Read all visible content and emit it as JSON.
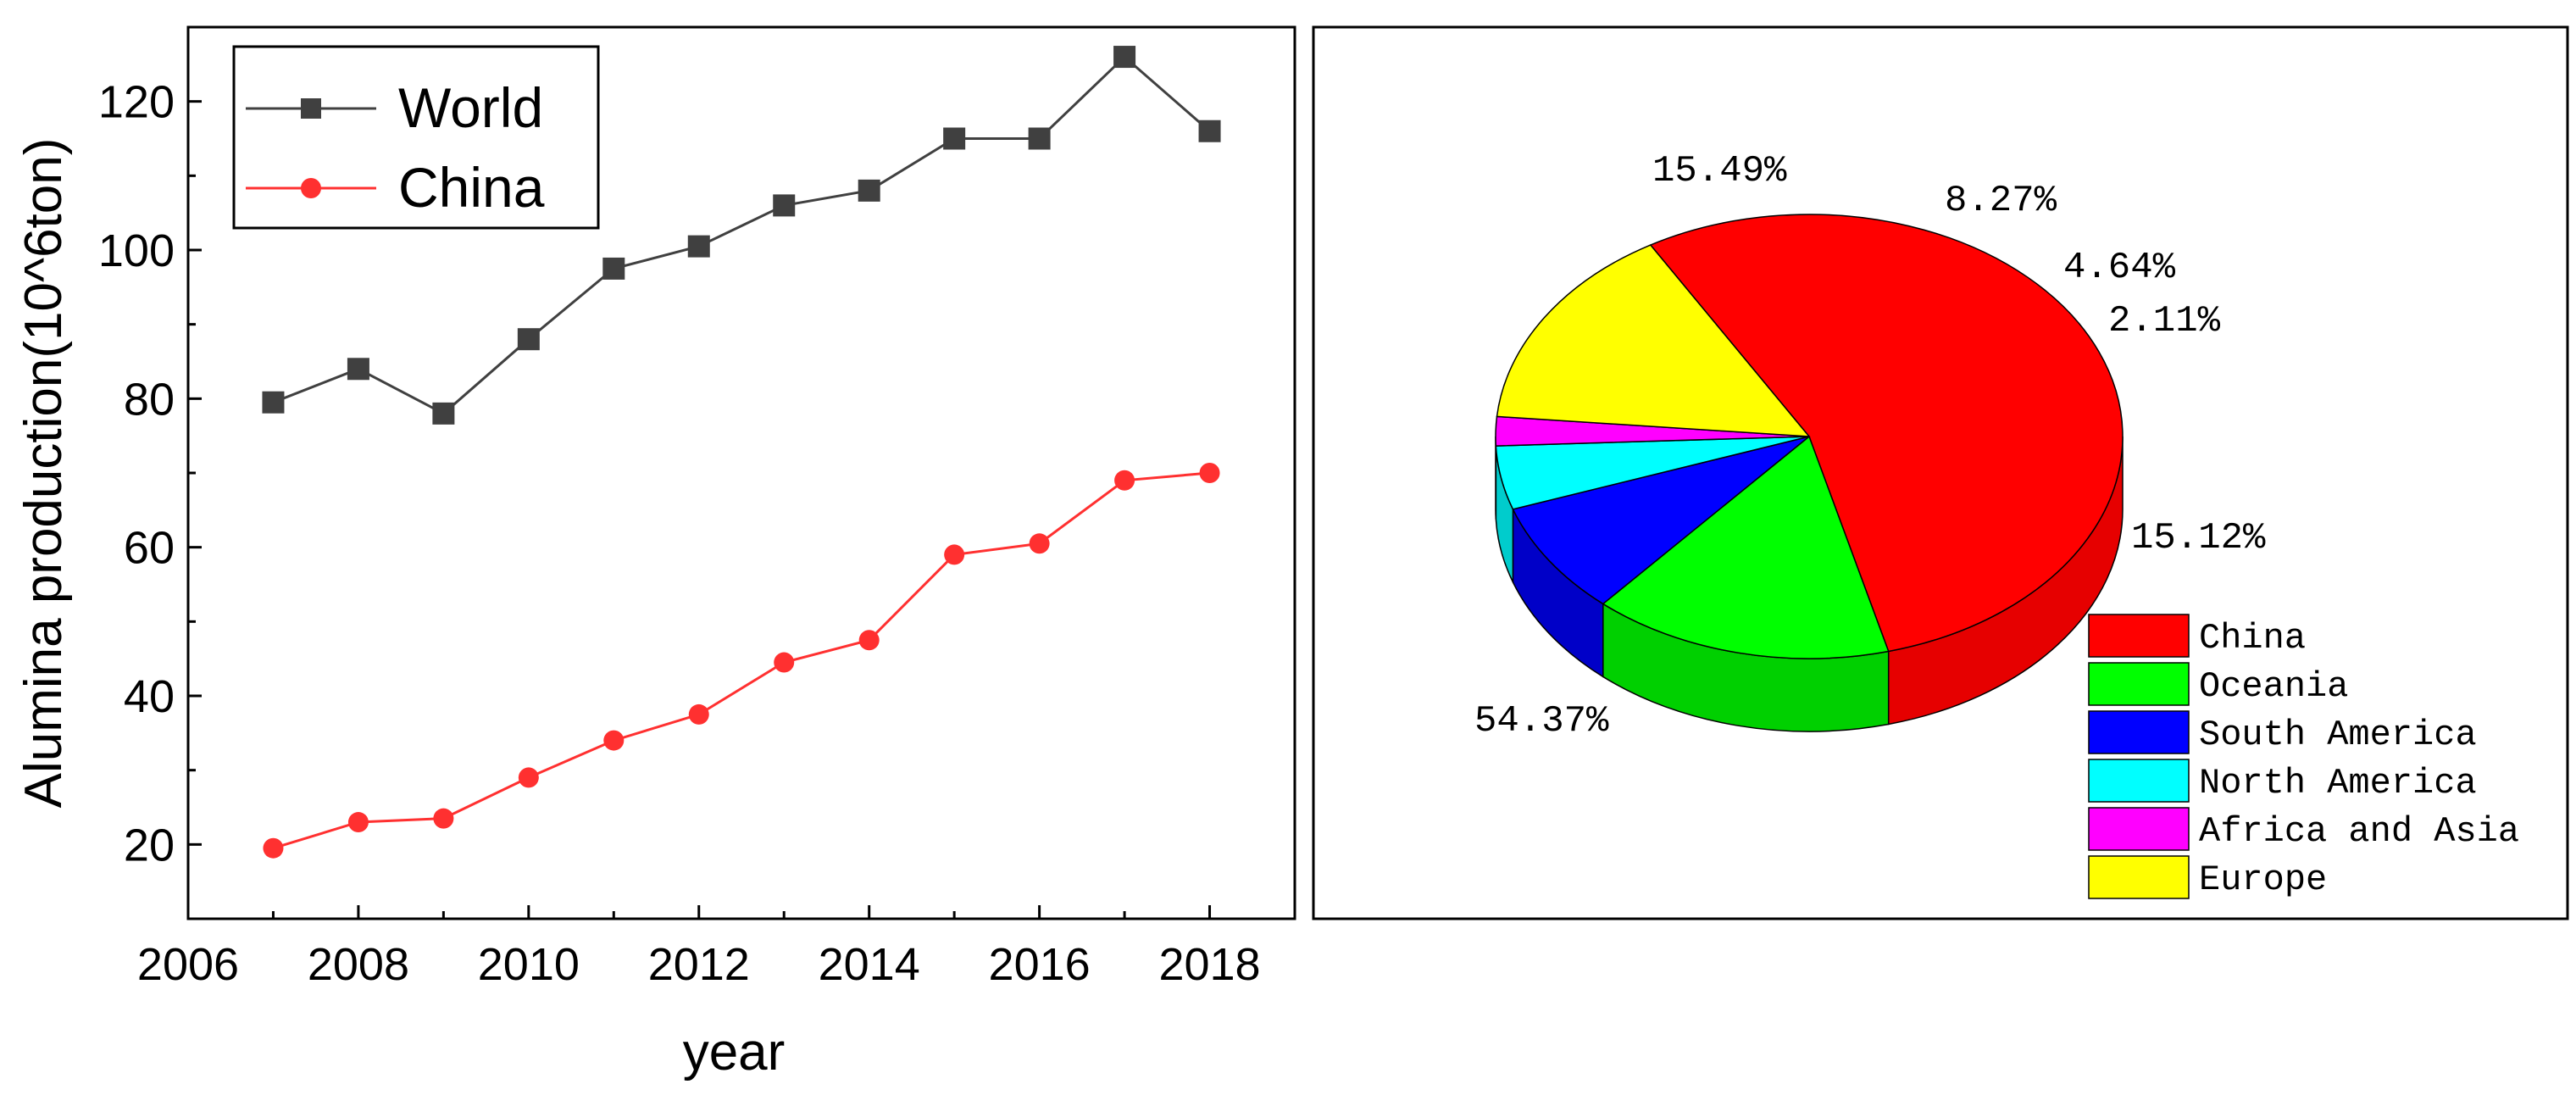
{
  "chart_data": [
    {
      "type": "line",
      "xlabel": "year",
      "ylabel": "Alumina production(10^6ton)",
      "xlim": [
        2006,
        2019
      ],
      "ylim": [
        10,
        130
      ],
      "x": [
        2007,
        2008,
        2009,
        2010,
        2011,
        2012,
        2013,
        2014,
        2015,
        2016,
        2017,
        2018
      ],
      "xticks": [
        "2006",
        "2008",
        "2010",
        "2012",
        "2014",
        "2016",
        "2018"
      ],
      "yticks": [
        "20",
        "40",
        "60",
        "80",
        "100",
        "120"
      ],
      "legend_position": "top-left",
      "grid": false,
      "series": [
        {
          "name": "World",
          "color": "#404040",
          "marker": "square",
          "values": [
            79.5,
            84,
            78,
            88,
            97.5,
            100.5,
            106,
            108,
            115,
            115,
            126,
            116
          ]
        },
        {
          "name": "China",
          "color": "#ff3030",
          "marker": "circle",
          "values": [
            19.5,
            23,
            23.5,
            29,
            34,
            37.5,
            44.5,
            47.5,
            59,
            60.5,
            69,
            70
          ]
        }
      ]
    },
    {
      "type": "pie",
      "style": "3d",
      "legend_position": "bottom-right",
      "slices": [
        {
          "name": "China",
          "value": 54.37,
          "label": "54.37%",
          "color": "#ff0000",
          "side_color": "#e60000"
        },
        {
          "name": "Oceania",
          "value": 15.49,
          "label": "15.49%",
          "color": "#00ff00",
          "side_color": "#00d000"
        },
        {
          "name": "South America",
          "value": 8.27,
          "label": "8.27%",
          "color": "#0000ff",
          "side_color": "#0000c8"
        },
        {
          "name": "North America",
          "value": 4.64,
          "label": "4.64%",
          "color": "#00ffff",
          "side_color": "#00cccc"
        },
        {
          "name": "Africa and Asia",
          "value": 2.11,
          "label": "2.11%",
          "color": "#ff00ff",
          "side_color": "#cc00cc"
        },
        {
          "name": "Europe",
          "value": 15.12,
          "label": "15.12%",
          "color": "#ffff00",
          "side_color": "#dddd00"
        }
      ],
      "legend": [
        "China",
        "Oceania",
        "South America",
        "North America",
        "Africa and Asia",
        "Europe"
      ]
    }
  ]
}
